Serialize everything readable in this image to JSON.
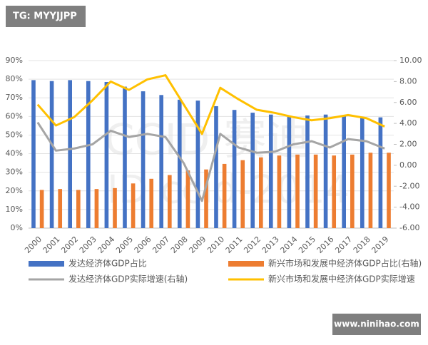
{
  "chart_data": {
    "type": "bar_line",
    "watermarks": [
      "TG: MYYJJPP",
      "www.ninihao.com",
      "CCID 赛迪",
      "ID ccid-2014"
    ],
    "categories": [
      "2000",
      "2001",
      "2002",
      "2003",
      "2004",
      "2005",
      "2006",
      "2007",
      "2008",
      "2009",
      "2010",
      "2011",
      "2012",
      "2013",
      "2014",
      "2015",
      "2016",
      "2017",
      "2018",
      "2019"
    ],
    "series": [
      {
        "name": "发达经济体GDP占比",
        "kind": "bar",
        "color": "#4472c4",
        "values": [
          79.5,
          79,
          79.5,
          79,
          78.5,
          76,
          73.5,
          71.5,
          69,
          68.5,
          65.5,
          63.5,
          62,
          61,
          60.5,
          60.5,
          61,
          60.5,
          59.5,
          59.5
        ]
      },
      {
        "name": "新兴市场和发展中经济体GDP占比(右轴)",
        "kind": "bar",
        "color": "#ed7d31",
        "values": [
          20.5,
          21,
          20.5,
          21,
          21.5,
          24,
          26.5,
          28.5,
          31,
          31.5,
          34.5,
          36.5,
          38,
          39,
          39.5,
          39.5,
          39,
          39.5,
          40.5,
          40.5
        ]
      },
      {
        "name": "发达经济体GDP实际增速(右轴)",
        "kind": "line",
        "axis": "y2",
        "color": "#a5a5a5",
        "values": [
          4.1,
          1.4,
          1.6,
          2.0,
          3.3,
          2.7,
          3.0,
          2.7,
          0.2,
          -3.4,
          3.0,
          1.7,
          1.2,
          1.3,
          2.0,
          2.3,
          1.7,
          2.5,
          2.3,
          1.6
        ]
      },
      {
        "name": "新兴市场和发展中经济体GDP实际增速",
        "kind": "line",
        "axis": "y2",
        "color": "#ffc000",
        "values": [
          5.8,
          3.8,
          4.6,
          6.2,
          8.0,
          7.2,
          8.2,
          8.6,
          5.8,
          3.0,
          7.4,
          6.3,
          5.3,
          5.0,
          4.6,
          4.3,
          4.5,
          4.8,
          4.5,
          3.7
        ]
      }
    ],
    "ylim": [
      0,
      90
    ],
    "yticks": [
      {
        "value": 0,
        "label": "0%"
      },
      {
        "value": 10,
        "label": "10%"
      },
      {
        "value": 20,
        "label": "20%"
      },
      {
        "value": 30,
        "label": "30%"
      },
      {
        "value": 40,
        "label": "40%"
      },
      {
        "value": 50,
        "label": "50%"
      },
      {
        "value": 60,
        "label": "60%"
      },
      {
        "value": 70,
        "label": "70%"
      },
      {
        "value": 80,
        "label": "80%"
      },
      {
        "value": 90,
        "label": "90%"
      }
    ],
    "y2lim": [
      -6,
      10
    ],
    "y2ticks": [
      {
        "value": -6,
        "label": "-6.00"
      },
      {
        "value": -4,
        "label": "-4.00"
      },
      {
        "value": -2,
        "label": "-2.00"
      },
      {
        "value": 0,
        "label": "0.00"
      },
      {
        "value": 2,
        "label": "2.00"
      },
      {
        "value": 4,
        "label": "4.00"
      },
      {
        "value": 6,
        "label": "6.00"
      },
      {
        "value": 8,
        "label": "8.00"
      },
      {
        "value": 10,
        "label": "10.00"
      }
    ],
    "grid": true
  }
}
